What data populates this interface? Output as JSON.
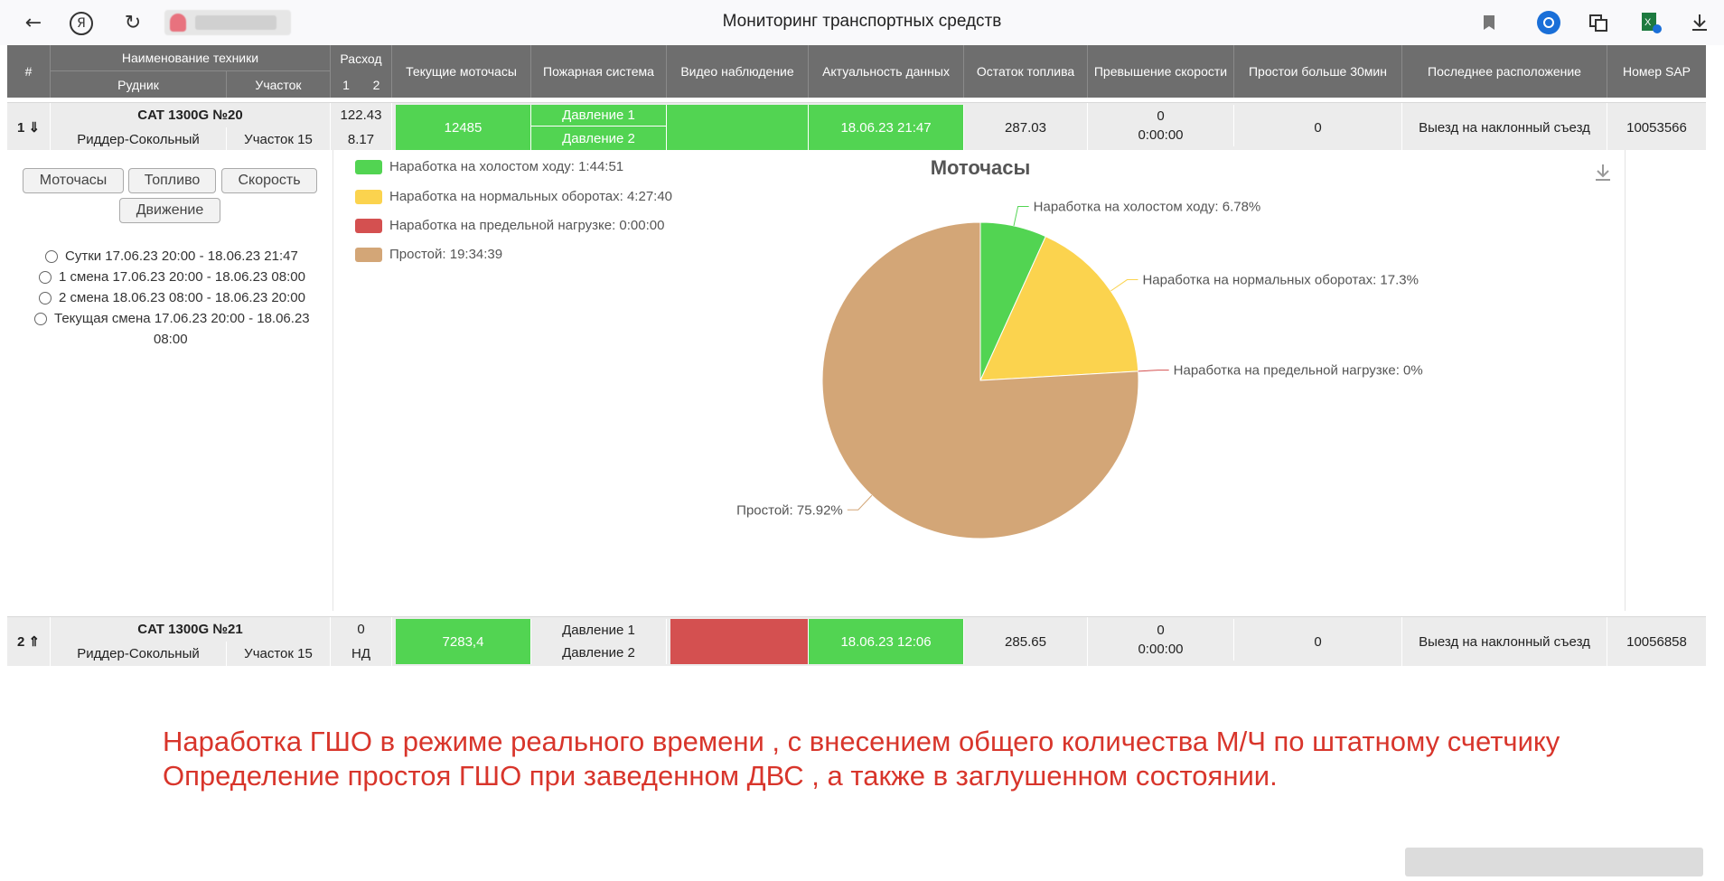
{
  "browser": {
    "back_icon": "←",
    "yandex_icon": "Я",
    "reload_icon": "↻",
    "title": "Мониторинг транспортных средств",
    "bookmark_icon": "🔖",
    "download_icon": "⤓"
  },
  "table": {
    "header": {
      "num": "#",
      "name": "Наименование техники",
      "mine": "Рудник",
      "section": "Участок",
      "flow": "Расход",
      "flow1": "1",
      "flow2": "2",
      "motohours": "Текущие моточасы",
      "fire": "Пожарная система",
      "video": "Видео наблюдение",
      "actual": "Актуальность данных",
      "fuel": "Остаток топлива",
      "speeding": "Превышение скорости",
      "idle30": "Простои больше 30мин",
      "location": "Последнее расположение",
      "sap": "Номер SAP"
    },
    "rows": [
      {
        "num": "1 ⇓",
        "name": "CAT 1300G №20",
        "mine": "Риддер-Сокольный",
        "section": "Участок 15",
        "flow1": "122.43",
        "flow2": "8.17",
        "motohours": "12485",
        "fire1": "Давление 1",
        "fire2": "Давление 2",
        "actual": "18.06.23 21:47",
        "fuel": "287.03",
        "speeding_count": "0",
        "speeding_time": "0:00:00",
        "idle30": "0",
        "location": "Выезд на наклонный съезд",
        "sap": "10053566"
      },
      {
        "num": "2 ⇑",
        "name": "CAT 1300G №21",
        "mine": "Риддер-Сокольный",
        "section": "Участок 15",
        "flow1": "0",
        "flow2": "НД",
        "motohours": "7283,4",
        "fire1": "Давление 1",
        "fire2": "Давление 2",
        "actual": "18.06.23 12:06",
        "fuel": "285.65",
        "speeding_count": "0",
        "speeding_time": "0:00:00",
        "idle30": "0",
        "location": "Выезд на наклонный съезд",
        "sap": "10056858"
      }
    ]
  },
  "detail": {
    "buttons": [
      "Моточасы",
      "Топливо",
      "Скорость",
      "Движение"
    ],
    "periods": [
      "Сутки 17.06.23 20:00 - 18.06.23 21:47",
      "1 смена 17.06.23 20:00 - 18.06.23 08:00",
      "2 смена 18.06.23 08:00 - 18.06.23 20:00",
      "Текущая смена 17.06.23 20:00 - 18.06.23",
      "08:00"
    ],
    "legend": [
      {
        "label": "Наработка на холостом ходу: 1:44:51",
        "color": "#52d452"
      },
      {
        "label": "Наработка на нормальных оборотах: 4:27:40",
        "color": "#fbd34e"
      },
      {
        "label": "Наработка на предельной нагрузке: 0:00:00",
        "color": "#d45050"
      },
      {
        "label": "Простой: 19:34:39",
        "color": "#d3a677"
      }
    ]
  },
  "chart_data": {
    "type": "pie",
    "title": "Моточасы",
    "categories": [
      "Наработка на холостом ходу",
      "Наработка на нормальных оборотах",
      "Наработка на предельной нагрузке",
      "Простой"
    ],
    "values": [
      6.78,
      17.3,
      0,
      75.92
    ],
    "labels": [
      "Наработка на холостом ходу: 6.78%",
      "Наработка на нормальных оборотах: 17.3%",
      "Наработка на предельной нагрузке: 0%",
      "Простой: 75.92%"
    ],
    "colors": [
      "#52d452",
      "#fbd34e",
      "#d45050",
      "#d3a677"
    ]
  },
  "caption": {
    "line1": "Наработка ГШО в режиме реального времени , с внесением общего количества М/Ч по штатному счетчику",
    "line2": "Определение простоя ГШО при заведенном ДВС , а также в заглушенном состоянии."
  }
}
